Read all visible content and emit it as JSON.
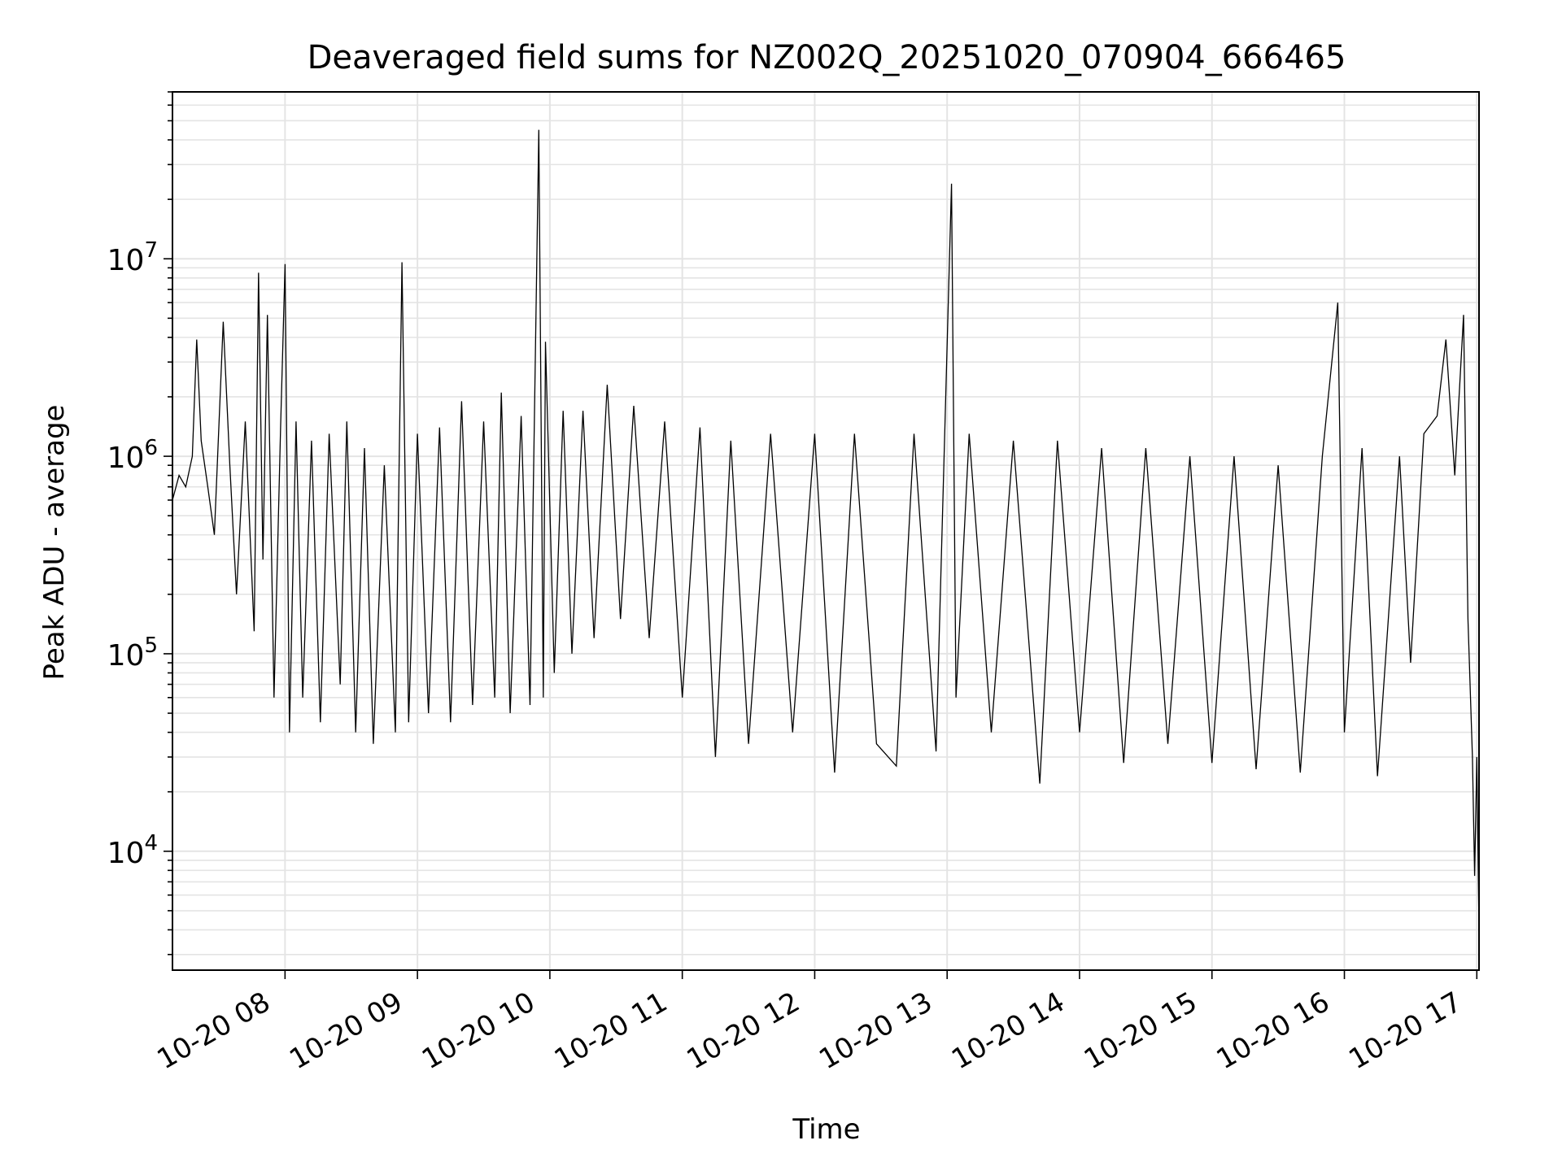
{
  "chart_data": {
    "type": "line",
    "title": "Deaveraged field sums for NZ002Q_20251020_070904_666465",
    "xlabel": "Time",
    "ylabel": "Peak ADU - average",
    "y_scale": "log",
    "ylim": [
      2500,
      70000000
    ],
    "xlim": [
      "2025-10-20 07:09",
      "2025-10-20 17:01"
    ],
    "grid": true,
    "line_color": "#000000",
    "grid_color": "#e4e4e4",
    "x_ticks": [
      {
        "t": "2025-10-20 08:00",
        "label": "10-20 08"
      },
      {
        "t": "2025-10-20 09:00",
        "label": "10-20 09"
      },
      {
        "t": "2025-10-20 10:00",
        "label": "10-20 10"
      },
      {
        "t": "2025-10-20 11:00",
        "label": "10-20 11"
      },
      {
        "t": "2025-10-20 12:00",
        "label": "10-20 12"
      },
      {
        "t": "2025-10-20 13:00",
        "label": "10-20 13"
      },
      {
        "t": "2025-10-20 14:00",
        "label": "10-20 14"
      },
      {
        "t": "2025-10-20 15:00",
        "label": "10-20 15"
      },
      {
        "t": "2025-10-20 16:00",
        "label": "10-20 16"
      },
      {
        "t": "2025-10-20 17:00",
        "label": "10-20 17"
      }
    ],
    "y_ticks": [
      {
        "value": 10000,
        "base": "10",
        "exp": "4"
      },
      {
        "value": 100000,
        "base": "10",
        "exp": "5"
      },
      {
        "value": 1000000,
        "base": "10",
        "exp": "6"
      },
      {
        "value": 10000000,
        "base": "10",
        "exp": "7"
      }
    ],
    "series": [
      {
        "points": [
          [
            "2025-10-20 07:09",
            600000
          ],
          [
            "2025-10-20 07:12",
            800000
          ],
          [
            "2025-10-20 07:15",
            700000
          ],
          [
            "2025-10-20 07:18",
            1000000
          ],
          [
            "2025-10-20 07:20",
            3900000
          ],
          [
            "2025-10-20 07:22",
            1200000
          ],
          [
            "2025-10-20 07:25",
            700000
          ],
          [
            "2025-10-20 07:28",
            400000
          ],
          [
            "2025-10-20 07:32",
            4800000
          ],
          [
            "2025-10-20 07:35",
            900000
          ],
          [
            "2025-10-20 07:38",
            200000
          ],
          [
            "2025-10-20 07:42",
            1500000
          ],
          [
            "2025-10-20 07:46",
            130000
          ],
          [
            "2025-10-20 07:48",
            8500000
          ],
          [
            "2025-10-20 07:50",
            300000
          ],
          [
            "2025-10-20 07:52",
            5200000
          ],
          [
            "2025-10-20 07:55",
            60000
          ],
          [
            "2025-10-20 07:58",
            1400000
          ],
          [
            "2025-10-20 08:00",
            9400000
          ],
          [
            "2025-10-20 08:02",
            40000
          ],
          [
            "2025-10-20 08:05",
            1500000
          ],
          [
            "2025-10-20 08:08",
            60000
          ],
          [
            "2025-10-20 08:12",
            1200000
          ],
          [
            "2025-10-20 08:16",
            45000
          ],
          [
            "2025-10-20 08:20",
            1300000
          ],
          [
            "2025-10-20 08:25",
            70000
          ],
          [
            "2025-10-20 08:28",
            1500000
          ],
          [
            "2025-10-20 08:32",
            40000
          ],
          [
            "2025-10-20 08:36",
            1100000
          ],
          [
            "2025-10-20 08:40",
            35000
          ],
          [
            "2025-10-20 08:45",
            900000
          ],
          [
            "2025-10-20 08:50",
            40000
          ],
          [
            "2025-10-20 08:53",
            9600000
          ],
          [
            "2025-10-20 08:56",
            45000
          ],
          [
            "2025-10-20 09:00",
            1300000
          ],
          [
            "2025-10-20 09:05",
            50000
          ],
          [
            "2025-10-20 09:10",
            1400000
          ],
          [
            "2025-10-20 09:15",
            45000
          ],
          [
            "2025-10-20 09:20",
            1900000
          ],
          [
            "2025-10-20 09:25",
            55000
          ],
          [
            "2025-10-20 09:30",
            1500000
          ],
          [
            "2025-10-20 09:35",
            60000
          ],
          [
            "2025-10-20 09:38",
            2100000
          ],
          [
            "2025-10-20 09:42",
            50000
          ],
          [
            "2025-10-20 09:47",
            1600000
          ],
          [
            "2025-10-20 09:51",
            55000
          ],
          [
            "2025-10-20 09:55",
            45000000
          ],
          [
            "2025-10-20 09:57",
            60000
          ],
          [
            "2025-10-20 09:58",
            3800000
          ],
          [
            "2025-10-20 10:02",
            80000
          ],
          [
            "2025-10-20 10:06",
            1700000
          ],
          [
            "2025-10-20 10:10",
            100000
          ],
          [
            "2025-10-20 10:15",
            1700000
          ],
          [
            "2025-10-20 10:20",
            120000
          ],
          [
            "2025-10-20 10:26",
            2300000
          ],
          [
            "2025-10-20 10:32",
            150000
          ],
          [
            "2025-10-20 10:38",
            1800000
          ],
          [
            "2025-10-20 10:45",
            120000
          ],
          [
            "2025-10-20 10:52",
            1500000
          ],
          [
            "2025-10-20 11:00",
            60000
          ],
          [
            "2025-10-20 11:08",
            1400000
          ],
          [
            "2025-10-20 11:15",
            30000
          ],
          [
            "2025-10-20 11:22",
            1200000
          ],
          [
            "2025-10-20 11:30",
            35000
          ],
          [
            "2025-10-20 11:40",
            1300000
          ],
          [
            "2025-10-20 11:50",
            40000
          ],
          [
            "2025-10-20 12:00",
            1300000
          ],
          [
            "2025-10-20 12:09",
            25000
          ],
          [
            "2025-10-20 12:18",
            1300000
          ],
          [
            "2025-10-20 12:28",
            35000
          ],
          [
            "2025-10-20 12:37",
            27000
          ],
          [
            "2025-10-20 12:45",
            1300000
          ],
          [
            "2025-10-20 12:55",
            32000
          ],
          [
            "2025-10-20 13:02",
            24000000
          ],
          [
            "2025-10-20 13:04",
            60000
          ],
          [
            "2025-10-20 13:10",
            1300000
          ],
          [
            "2025-10-20 13:20",
            40000
          ],
          [
            "2025-10-20 13:30",
            1200000
          ],
          [
            "2025-10-20 13:42",
            22000
          ],
          [
            "2025-10-20 13:50",
            1200000
          ],
          [
            "2025-10-20 14:00",
            40000
          ],
          [
            "2025-10-20 14:10",
            1100000
          ],
          [
            "2025-10-20 14:20",
            28000
          ],
          [
            "2025-10-20 14:30",
            1100000
          ],
          [
            "2025-10-20 14:40",
            35000
          ],
          [
            "2025-10-20 14:50",
            1000000
          ],
          [
            "2025-10-20 15:00",
            28000
          ],
          [
            "2025-10-20 15:10",
            1000000
          ],
          [
            "2025-10-20 15:20",
            26000
          ],
          [
            "2025-10-20 15:30",
            900000
          ],
          [
            "2025-10-20 15:40",
            25000
          ],
          [
            "2025-10-20 15:50",
            1000000
          ],
          [
            "2025-10-20 15:57",
            6000000
          ],
          [
            "2025-10-20 16:00",
            40000
          ],
          [
            "2025-10-20 16:08",
            1100000
          ],
          [
            "2025-10-20 16:15",
            24000
          ],
          [
            "2025-10-20 16:25",
            1000000
          ],
          [
            "2025-10-20 16:30",
            90000
          ],
          [
            "2025-10-20 16:36",
            1300000
          ],
          [
            "2025-10-20 16:42",
            1600000
          ],
          [
            "2025-10-20 16:46",
            3900000
          ],
          [
            "2025-10-20 16:50",
            800000
          ],
          [
            "2025-10-20 16:54",
            5200000
          ],
          [
            "2025-10-20 16:56",
            150000
          ],
          [
            "2025-10-20 16:58",
            30000
          ],
          [
            "2025-10-20 16:59",
            7500
          ],
          [
            "2025-10-20 17:00",
            30000
          ],
          [
            "2025-10-20 17:01",
            4000
          ]
        ]
      }
    ]
  }
}
